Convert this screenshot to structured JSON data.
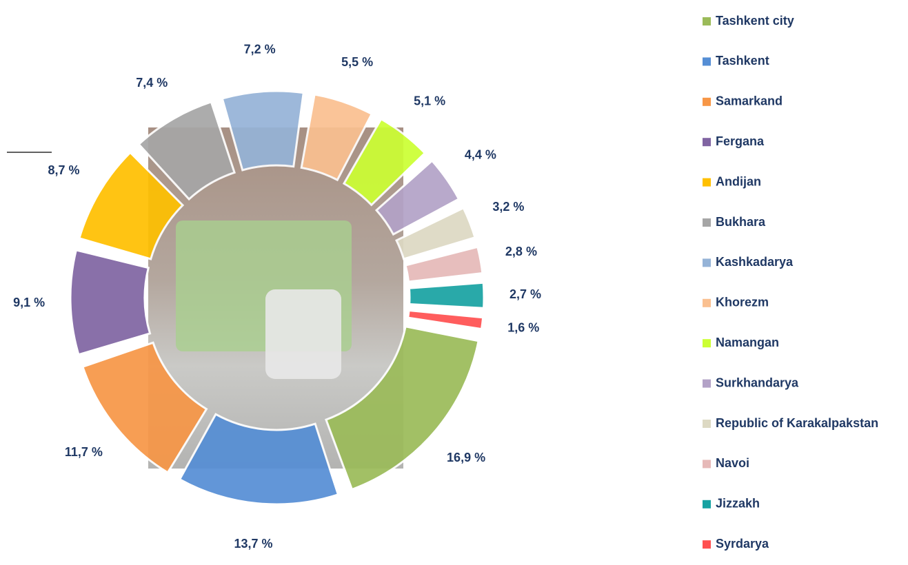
{
  "chart_data": {
    "type": "donut",
    "categories": [
      "Tashkent city",
      "Tashkent",
      "Samarkand",
      "Fergana",
      "Andijan",
      "Bukhara",
      "Kashkadarya",
      "Khorezm",
      "Namangan",
      "Surkhandarya",
      "Republic of Karakalpakstan",
      "Navoi",
      "Jizzakh",
      "Syrdarya"
    ],
    "values": [
      16.9,
      13.7,
      11.7,
      9.1,
      8.7,
      7.4,
      7.2,
      5.5,
      5.1,
      4.4,
      3.2,
      2.8,
      2.7,
      1.6
    ],
    "value_labels": [
      "16,9 %",
      "13,7 %",
      "11,7 %",
      "9,1 %",
      "8,7 %",
      "7,4 %",
      "7,2 %",
      "5,5 %",
      "5,1 %",
      "4,4 %",
      "3,2 %",
      "2,8 %",
      "2,7 %",
      "1,6 %"
    ],
    "colors": [
      "#9bbb59",
      "#558ed5",
      "#f79646",
      "#8064a2",
      "#ffc000",
      "#a6a6a6",
      "#95b3d7",
      "#fac090",
      "#ccff33",
      "#b3a2c7",
      "#ddd9c3",
      "#e6b9b8",
      "#17a2a2",
      "#ff5050"
    ],
    "legend": "right"
  }
}
